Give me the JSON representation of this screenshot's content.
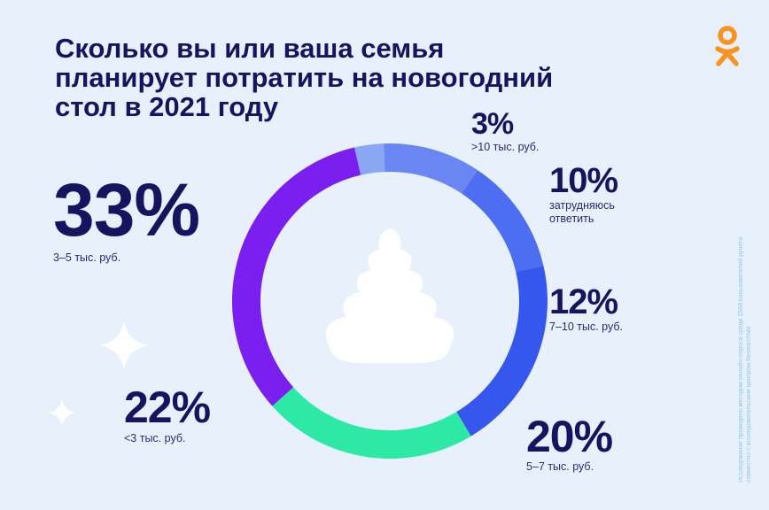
{
  "title_lines": [
    "Сколько вы или ваша семья",
    "планирует потратить на новогодний",
    "стол в 2021 году"
  ],
  "logo_icon": "ok-logo-icon",
  "brand_color": "#f7931e",
  "side_note": "Исследование проведено методом онлайн-опроса среди 1568 пользователей рунета совместно с исследовательским центром ResearchMe",
  "chart_data": {
    "type": "pie",
    "title": "Сколько вы или ваша семья планирует потратить на новогодний стол в 2021 году",
    "donut": true,
    "center_icon": "christmas-tree-icon",
    "slices": [
      {
        "label": ">10 тыс. руб.",
        "pct_text": "3%",
        "value": 3,
        "color": "#8aa7f4"
      },
      {
        "label": "затрудняюсь ответить",
        "pct_text": "10%",
        "value": 10,
        "color": "#6a86f2"
      },
      {
        "label": "7–10 тыс. руб.",
        "pct_text": "12%",
        "value": 12,
        "color": "#4d6ef0"
      },
      {
        "label": "5–7 тыс. руб.",
        "pct_text": "20%",
        "value": 20,
        "color": "#3557ee"
      },
      {
        "label": "<3 тыс. руб.",
        "pct_text": "22%",
        "value": 22,
        "color": "#2ee8a5"
      },
      {
        "label": "3–5 тыс. руб.",
        "pct_text": "33%",
        "value": 33,
        "color": "#7a1ff0"
      }
    ]
  }
}
